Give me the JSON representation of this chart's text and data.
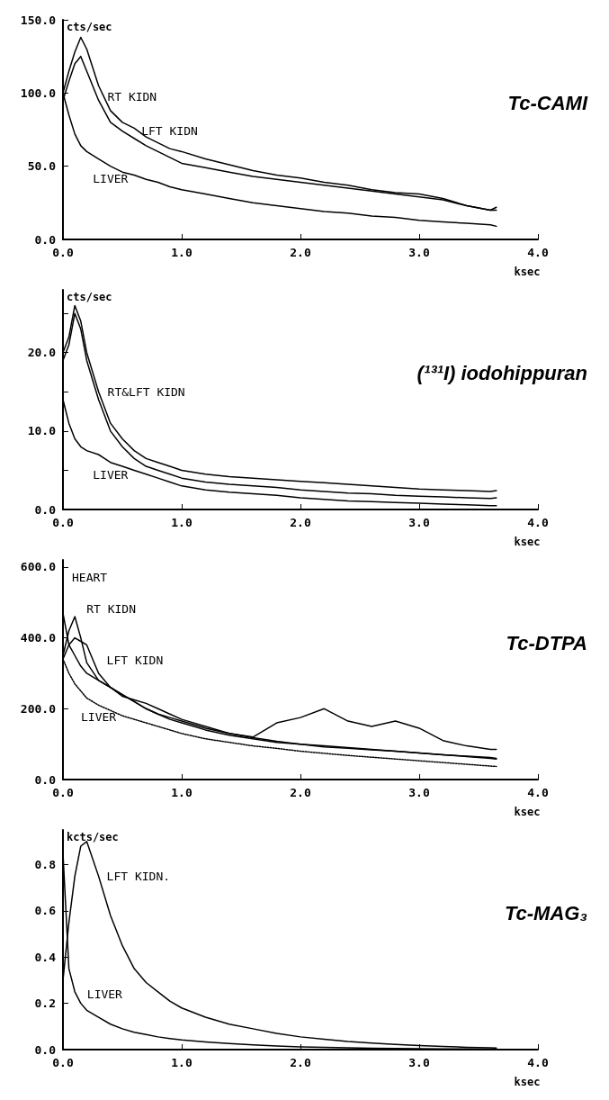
{
  "chart_data": [
    {
      "type": "line",
      "title": "Tc-CAMI",
      "ylabel": "cts/sec",
      "xlabel": "ksec",
      "xlim": [
        0,
        4
      ],
      "ylim": [
        0,
        150
      ],
      "xticks": [
        {
          "value": 0,
          "label": "0.0"
        },
        {
          "value": 1,
          "label": "1.0"
        },
        {
          "value": 2,
          "label": "2.0"
        },
        {
          "value": 3,
          "label": "3.0"
        },
        {
          "value": 4,
          "label": "4.0"
        }
      ],
      "yticks": [
        {
          "value": 0,
          "label": "0.0"
        },
        {
          "value": 50,
          "label": "50.0"
        },
        {
          "value": 100,
          "label": "100.0"
        },
        {
          "value": 150,
          "label": "150.0"
        }
      ],
      "x": [
        0,
        0.05,
        0.1,
        0.15,
        0.2,
        0.3,
        0.4,
        0.5,
        0.6,
        0.7,
        0.8,
        0.9,
        1.0,
        1.2,
        1.4,
        1.6,
        1.8,
        2.0,
        2.2,
        2.4,
        2.6,
        2.8,
        3.0,
        3.2,
        3.4,
        3.6,
        3.65
      ],
      "series": [
        {
          "name": "RT KIDN",
          "color": "#000000",
          "values": [
            100,
            115,
            128,
            138,
            130,
            105,
            88,
            80,
            76,
            70,
            66,
            62,
            60,
            55,
            51,
            47,
            44,
            42,
            39,
            37,
            34,
            32,
            31,
            28,
            23,
            20,
            22
          ]
        },
        {
          "name": "LFT KIDN",
          "color": "#000000",
          "values": [
            95,
            108,
            120,
            125,
            115,
            95,
            80,
            74,
            69,
            64,
            60,
            56,
            52,
            49,
            46,
            43,
            41,
            39,
            37,
            35,
            33,
            31,
            29,
            27,
            23,
            20,
            20
          ]
        },
        {
          "name": "LIVER",
          "color": "#000000",
          "values": [
            100,
            85,
            72,
            64,
            60,
            55,
            50,
            46,
            44,
            41,
            39,
            36,
            34,
            31,
            28,
            25,
            23,
            21,
            19,
            18,
            16,
            15,
            13,
            12,
            11,
            10,
            9
          ]
        }
      ]
    },
    {
      "type": "line",
      "title": "(¹³¹I) iodohippuran",
      "ylabel": "cts/sec",
      "xlabel": "ksec",
      "xlim": [
        0,
        4
      ],
      "ylim": [
        0,
        28
      ],
      "xticks": [
        {
          "value": 0,
          "label": "0.0"
        },
        {
          "value": 1,
          "label": "1.0"
        },
        {
          "value": 2,
          "label": "2.0"
        },
        {
          "value": 3,
          "label": "3.0"
        },
        {
          "value": 4,
          "label": "4.0"
        }
      ],
      "yticks": [
        {
          "value": 0,
          "label": "0.0"
        },
        {
          "value": 5,
          "label": null
        },
        {
          "value": 10,
          "label": "10.0"
        },
        {
          "value": 15,
          "label": null
        },
        {
          "value": 20,
          "label": "20.0"
        },
        {
          "value": 25,
          "label": null
        }
      ],
      "x": [
        0,
        0.05,
        0.1,
        0.15,
        0.2,
        0.3,
        0.4,
        0.5,
        0.6,
        0.7,
        0.8,
        0.9,
        1.0,
        1.2,
        1.4,
        1.6,
        1.8,
        2.0,
        2.2,
        2.4,
        2.6,
        2.8,
        3.0,
        3.2,
        3.4,
        3.6,
        3.65
      ],
      "series": [
        {
          "name": "RT&LFT KIDN",
          "color": "#000000",
          "values": [
            20,
            22,
            26,
            24,
            20,
            15,
            11,
            9,
            7.5,
            6.5,
            6,
            5.5,
            5,
            4.5,
            4.2,
            4,
            3.8,
            3.6,
            3.4,
            3.2,
            3.0,
            2.8,
            2.6,
            2.5,
            2.4,
            2.3,
            2.4
          ]
        },
        {
          "color": "#000000",
          "values": [
            19,
            21,
            25,
            23,
            19,
            14,
            10,
            8,
            6.5,
            5.5,
            5,
            4.5,
            4,
            3.5,
            3.2,
            3,
            2.8,
            2.5,
            2.3,
            2.1,
            2,
            1.8,
            1.7,
            1.6,
            1.5,
            1.4,
            1.5
          ]
        },
        {
          "name": "LIVER",
          "color": "#000000",
          "values": [
            14,
            11,
            9,
            8,
            7.5,
            7,
            6,
            5.5,
            5,
            4.5,
            4,
            3.5,
            3,
            2.5,
            2.2,
            2,
            1.8,
            1.5,
            1.3,
            1.1,
            1,
            0.9,
            0.8,
            0.7,
            0.6,
            0.5,
            0.5
          ]
        }
      ]
    },
    {
      "type": "line",
      "title": "Tc-DTPA",
      "xlabel": "ksec",
      "xlim": [
        0,
        4
      ],
      "ylim": [
        0,
        620
      ],
      "xticks": [
        {
          "value": 0,
          "label": "0.0"
        },
        {
          "value": 1,
          "label": "1.0"
        },
        {
          "value": 2,
          "label": "2.0"
        },
        {
          "value": 3,
          "label": "3.0"
        },
        {
          "value": 4,
          "label": "4.0"
        }
      ],
      "yticks": [
        {
          "value": 0,
          "label": "0.0"
        },
        {
          "value": 200,
          "label": "200.0"
        },
        {
          "value": 400,
          "label": "400.0"
        },
        {
          "value": 600,
          "label": "600.0"
        }
      ],
      "x": [
        0,
        0.05,
        0.1,
        0.15,
        0.2,
        0.3,
        0.4,
        0.5,
        0.6,
        0.7,
        0.8,
        0.9,
        1.0,
        1.2,
        1.4,
        1.6,
        1.8,
        2.0,
        2.2,
        2.4,
        2.6,
        2.8,
        3.0,
        3.2,
        3.4,
        3.6,
        3.65
      ],
      "series": [
        {
          "name": "HEART",
          "color": "#000000",
          "values": [
            470,
            380,
            350,
            320,
            300,
            280,
            260,
            240,
            220,
            200,
            185,
            175,
            165,
            145,
            130,
            118,
            108,
            100,
            92,
            88,
            84,
            80,
            75,
            70,
            66,
            62,
            60
          ]
        },
        {
          "name": "RT KIDN",
          "color": "#000000",
          "values": [
            350,
            420,
            460,
            400,
            330,
            280,
            260,
            240,
            220,
            200,
            185,
            170,
            160,
            140,
            125,
            115,
            105,
            100,
            95,
            90,
            85,
            80,
            75,
            70,
            65,
            60,
            58
          ]
        },
        {
          "name": "LFT KIDN",
          "color": "#000000",
          "values": [
            340,
            380,
            400,
            390,
            380,
            300,
            260,
            235,
            225,
            215,
            200,
            185,
            170,
            150,
            130,
            120,
            160,
            175,
            200,
            165,
            150,
            165,
            145,
            110,
            95,
            85,
            85
          ]
        },
        {
          "name": "LIVER",
          "color": "#000000",
          "line_style": "dotted",
          "values": [
            340,
            300,
            270,
            250,
            230,
            210,
            195,
            180,
            170,
            160,
            150,
            140,
            130,
            115,
            105,
            95,
            88,
            80,
            74,
            68,
            63,
            58,
            53,
            48,
            43,
            38,
            37
          ]
        }
      ]
    },
    {
      "type": "line",
      "title": "Tc-MAG₃",
      "ylabel": "kcts/sec",
      "xlabel": "ksec",
      "xlim": [
        0,
        4
      ],
      "ylim": [
        0,
        0.95
      ],
      "xticks": [
        {
          "value": 0,
          "label": "0.0"
        },
        {
          "value": 1,
          "label": "1.0"
        },
        {
          "value": 2,
          "label": "2.0"
        },
        {
          "value": 3,
          "label": "3.0"
        },
        {
          "value": 4,
          "label": "4.0"
        }
      ],
      "yticks": [
        {
          "value": 0,
          "label": "0.0"
        },
        {
          "value": 0.2,
          "label": "0.2"
        },
        {
          "value": 0.4,
          "label": "0.4"
        },
        {
          "value": 0.6,
          "label": "0.6"
        },
        {
          "value": 0.8,
          "label": "0.8"
        }
      ],
      "x": [
        0,
        0.05,
        0.1,
        0.15,
        0.2,
        0.3,
        0.4,
        0.5,
        0.6,
        0.7,
        0.8,
        0.9,
        1.0,
        1.2,
        1.4,
        1.6,
        1.8,
        2.0,
        2.2,
        2.4,
        2.6,
        2.8,
        3.0,
        3.2,
        3.4,
        3.6,
        3.65
      ],
      "series": [
        {
          "name": "LFT KIDN.",
          "color": "#000000",
          "values": [
            0.3,
            0.55,
            0.75,
            0.88,
            0.9,
            0.75,
            0.58,
            0.45,
            0.35,
            0.29,
            0.25,
            0.21,
            0.18,
            0.14,
            0.11,
            0.09,
            0.07,
            0.055,
            0.045,
            0.035,
            0.028,
            0.022,
            0.018,
            0.014,
            0.01,
            0.008,
            0.007
          ]
        },
        {
          "name": "LIVER",
          "color": "#000000",
          "values": [
            0.85,
            0.35,
            0.25,
            0.2,
            0.17,
            0.14,
            0.11,
            0.09,
            0.075,
            0.065,
            0.055,
            0.048,
            0.042,
            0.033,
            0.026,
            0.02,
            0.016,
            0.012,
            0.01,
            0.008,
            0.006,
            0.005,
            0.004,
            0.003,
            0.003,
            0.002,
            0.002
          ]
        }
      ]
    }
  ]
}
